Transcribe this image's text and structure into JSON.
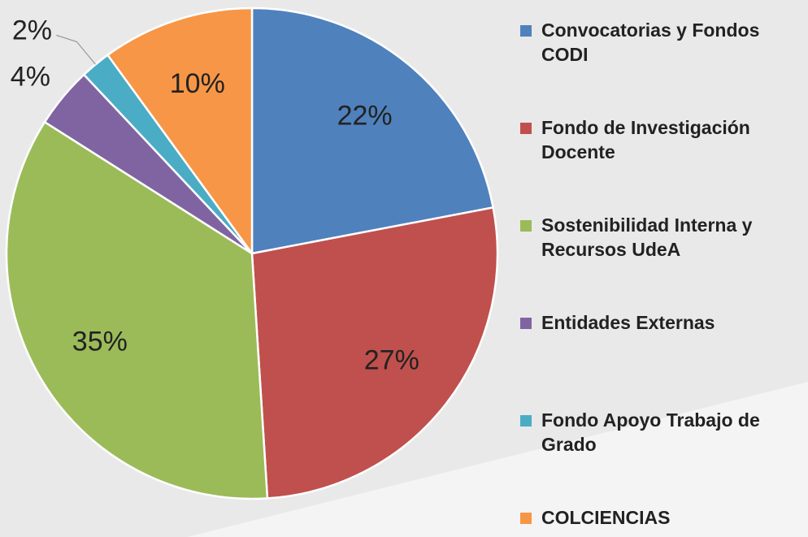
{
  "chart_data": {
    "type": "pie",
    "categories": [
      "Convocatorias y  Fondos CODI",
      "Fondo de Investigación Docente",
      "Sostenibilidad Interna y Recursos UdeA",
      "Entidades Externas",
      "Fondo Apoyo Trabajo de Grado",
      "COLCIENCIAS"
    ],
    "values": [
      22,
      27,
      35,
      4,
      2,
      10
    ],
    "value_labels": [
      "22%",
      "27%",
      "35%",
      "4%",
      "2%",
      "10%"
    ],
    "colors": [
      "#4f81bd",
      "#c0504d",
      "#9bbb59",
      "#8064a2",
      "#4bacc6",
      "#f79646"
    ],
    "legend": "right"
  }
}
